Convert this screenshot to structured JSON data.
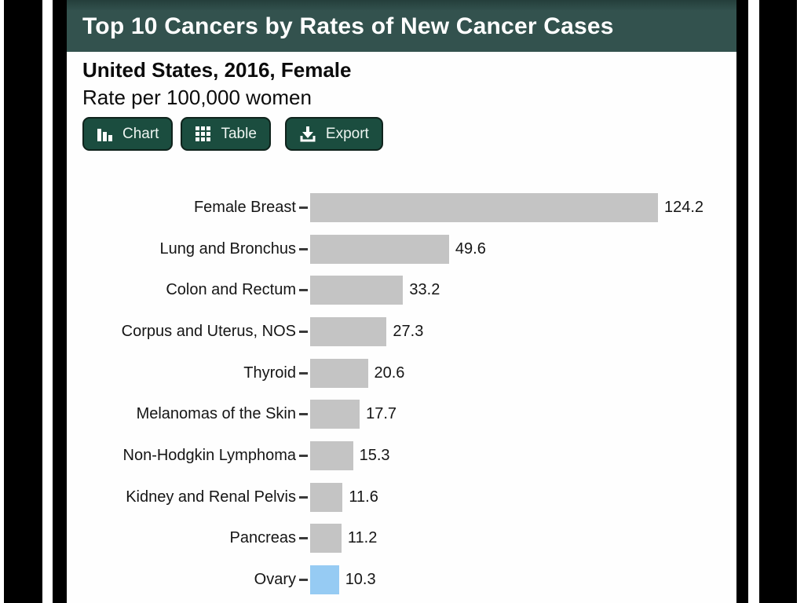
{
  "header": {
    "title": "Top 10 Cancers by Rates of New Cancer Cases"
  },
  "subtitle": "United States, 2016, Female",
  "unit_label": "Rate per 100,000 women",
  "toolbar": {
    "chart_label": "Chart",
    "table_label": "Table",
    "export_label": "Export"
  },
  "colors": {
    "header_bg": "#33524e",
    "button_bg": "#1b4d3f",
    "bar": "#c4c4c4",
    "highlight": "#96cbf3",
    "page_bg": "#fefefe",
    "frame": "#000000"
  },
  "chart_data": {
    "type": "bar",
    "orientation": "horizontal",
    "title": "Top 10 Cancers by Rates of New Cancer Cases",
    "subtitle": "United States, 2016, Female",
    "xlabel": "Rate per 100,000 women",
    "xlim": [
      0,
      130
    ],
    "grid": false,
    "legend": false,
    "categories": [
      "Female Breast",
      "Lung and Bronchus",
      "Colon and Rectum",
      "Corpus and Uterus, NOS",
      "Thyroid",
      "Melanomas of the Skin",
      "Non-Hodgkin Lymphoma",
      "Kidney and Renal Pelvis",
      "Pancreas",
      "Ovary"
    ],
    "values": [
      124.2,
      49.6,
      33.2,
      27.3,
      20.6,
      17.7,
      15.3,
      11.6,
      11.2,
      10.3
    ],
    "highlight_index": 9,
    "highlighted_category": "Ovary",
    "bar_color": "#c4c4c4",
    "highlight_color": "#96cbf3"
  }
}
